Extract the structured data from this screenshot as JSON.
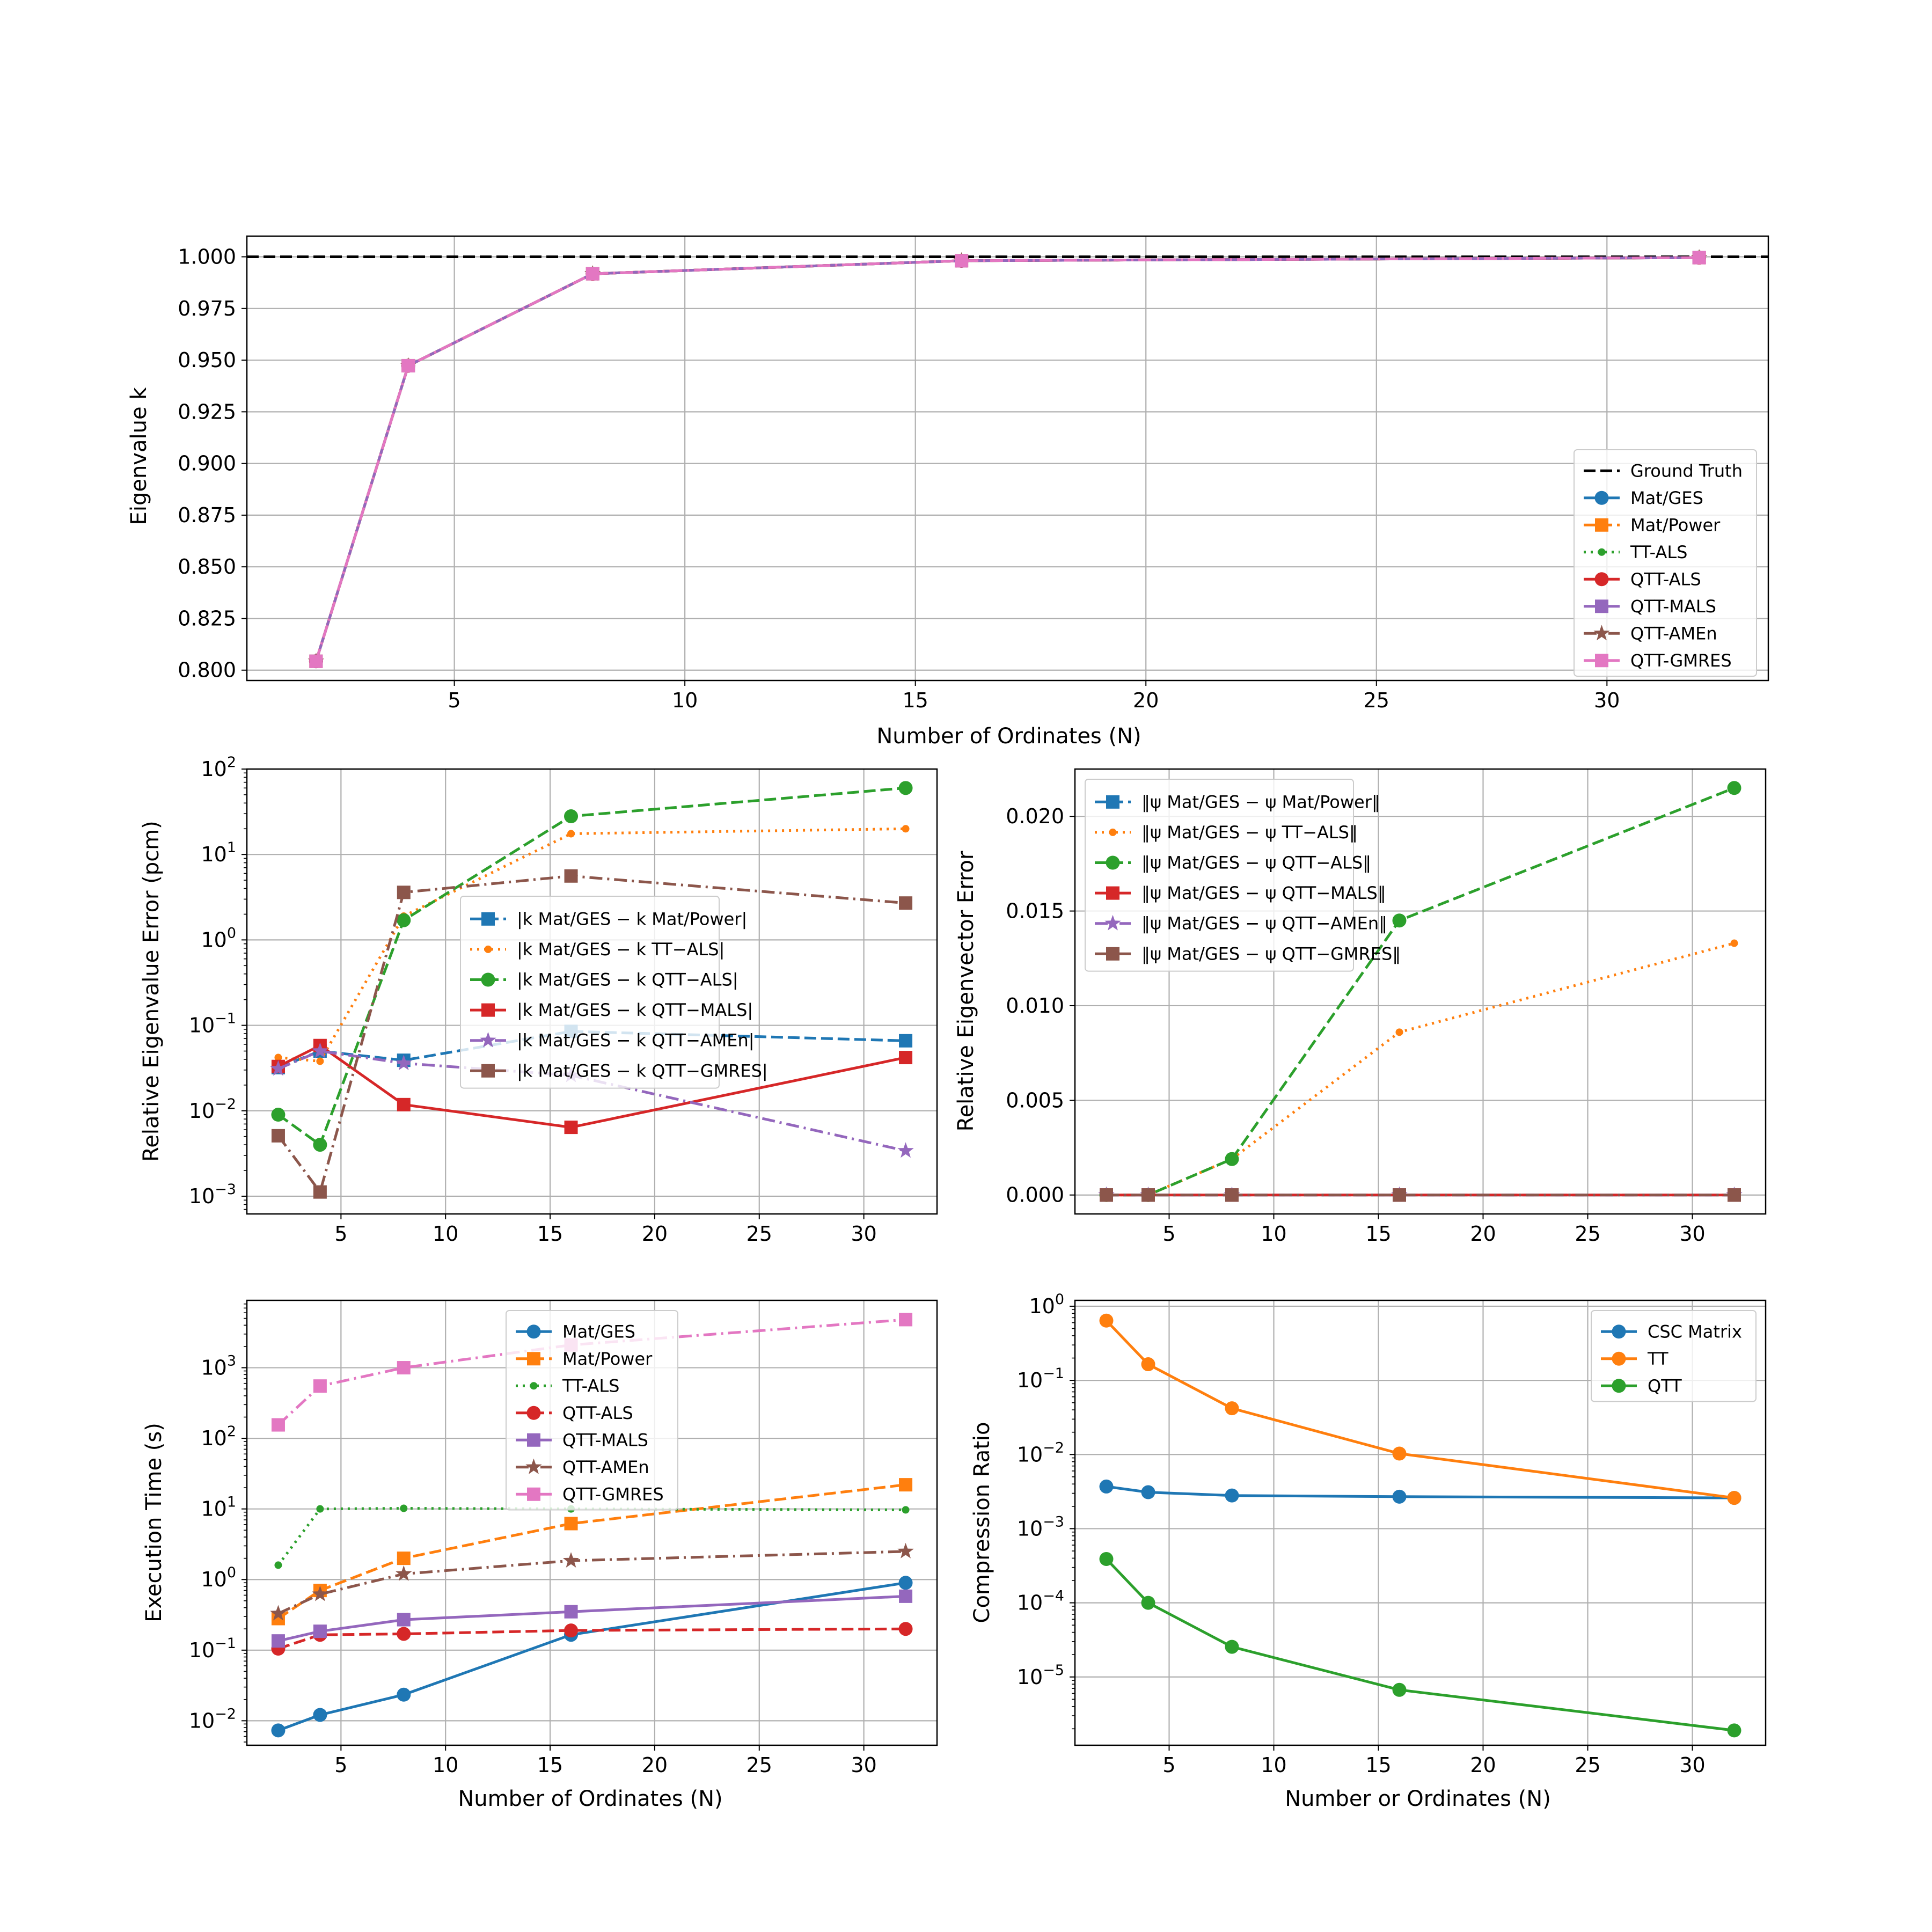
{
  "chart_data": [
    {
      "id": "p1",
      "type": "line",
      "xlabel": "Number of Ordinates (N)",
      "ylabel": "Eigenvalue k",
      "xlim": [
        0.5,
        33.5
      ],
      "ylim": [
        0.795,
        1.01
      ],
      "yscale": "linear",
      "grid": true,
      "legend_position": "lower-right",
      "xticks": [
        5,
        10,
        15,
        20,
        25,
        30
      ],
      "yticks": [
        0.8,
        0.825,
        0.85,
        0.875,
        0.9,
        0.925,
        0.95,
        0.975,
        1.0
      ],
      "ytick_labels": [
        "0.800",
        "0.825",
        "0.850",
        "0.875",
        "0.900",
        "0.925",
        "0.950",
        "0.975",
        "1.000"
      ],
      "x": [
        2,
        4,
        8,
        16,
        32
      ],
      "series": [
        {
          "name": "Ground Truth",
          "color": "#000000",
          "dash": "dashed",
          "marker": "none",
          "hline": 1.0
        },
        {
          "name": "Mat/GES",
          "color": "#1f77b4",
          "dash": "solid",
          "marker": "circle",
          "values": [
            0.8043,
            0.9473,
            0.9918,
            0.9981,
            0.9996
          ]
        },
        {
          "name": "Mat/Power",
          "color": "#ff7f0e",
          "dash": "dashed",
          "marker": "square",
          "values": [
            0.8043,
            0.9473,
            0.9918,
            0.9981,
            0.9996
          ]
        },
        {
          "name": "TT-ALS",
          "color": "#2ca02c",
          "dash": "dotted",
          "marker": "point",
          "values": [
            0.8043,
            0.9473,
            0.9918,
            0.9981,
            0.9996
          ]
        },
        {
          "name": "QTT-ALS",
          "color": "#d62728",
          "dash": "solid",
          "marker": "circle",
          "values": [
            0.8043,
            0.9473,
            0.9918,
            0.9981,
            0.9996
          ]
        },
        {
          "name": "QTT-MALS",
          "color": "#9467bd",
          "dash": "solid",
          "marker": "square",
          "values": [
            0.8043,
            0.9473,
            0.9918,
            0.9981,
            0.9996
          ]
        },
        {
          "name": "QTT-AMEn",
          "color": "#8c564b",
          "dash": "dashdot",
          "marker": "star",
          "values": [
            0.8043,
            0.9473,
            0.9918,
            0.9981,
            0.9996
          ]
        },
        {
          "name": "QTT-GMRES",
          "color": "#e377c2",
          "dash": "dashdot",
          "marker": "square",
          "values": [
            0.8043,
            0.9473,
            0.9918,
            0.9981,
            0.9996
          ]
        }
      ]
    },
    {
      "id": "p2",
      "type": "line",
      "xlabel": "",
      "ylabel": "Relative Eigenvalue Error (pcm)",
      "xlim": [
        0.5,
        33.5
      ],
      "ylim": [
        0.00062,
        100
      ],
      "yscale": "log",
      "grid": true,
      "legend_position": "center",
      "xticks": [
        5,
        10,
        15,
        20,
        25,
        30
      ],
      "yticks": [
        0.001,
        0.01,
        0.1,
        1,
        10,
        100
      ],
      "ytick_exps": [
        "-3",
        "-2",
        "-1",
        "0",
        "1",
        "2"
      ],
      "x": [
        2,
        4,
        8,
        16,
        32
      ],
      "series": [
        {
          "name": "|k Mat/GES − k Mat/Power|",
          "color": "#1f77b4",
          "dash": "dashed",
          "marker": "square",
          "values": [
            0.032,
            0.05,
            0.039,
            0.085,
            0.066
          ]
        },
        {
          "name": "|k Mat/GES − k TT−ALS|",
          "color": "#ff7f0e",
          "dash": "dotted",
          "marker": "point",
          "values": [
            0.042,
            0.038,
            1.9,
            17.5,
            20
          ]
        },
        {
          "name": "|k Mat/GES − k QTT−ALS|",
          "color": "#2ca02c",
          "dash": "dashed",
          "marker": "circle",
          "values": [
            0.009,
            0.004,
            1.7,
            28,
            60
          ]
        },
        {
          "name": "|k Mat/GES − k QTT−MALS|",
          "color": "#d62728",
          "dash": "solid",
          "marker": "square",
          "values": [
            0.033,
            0.058,
            0.0118,
            0.0064,
            0.042
          ]
        },
        {
          "name": "|k Mat/GES − k QTT−AMEn|",
          "color": "#9467bd",
          "dash": "dashdot",
          "marker": "star",
          "values": [
            0.031,
            0.05,
            0.036,
            0.026,
            0.0034
          ]
        },
        {
          "name": "|k Mat/GES − k QTT−GMRES|",
          "color": "#8c564b",
          "dash": "dashdot",
          "marker": "square",
          "values": [
            0.0051,
            0.00112,
            3.6,
            5.6,
            2.7
          ]
        }
      ]
    },
    {
      "id": "p3",
      "type": "line",
      "xlabel": "",
      "ylabel": "Relative Eigenvector Error",
      "xlim": [
        0.5,
        33.5
      ],
      "ylim": [
        -0.001,
        0.0225
      ],
      "yscale": "linear",
      "grid": true,
      "legend_position": "upper-left",
      "xticks": [
        5,
        10,
        15,
        20,
        25,
        30
      ],
      "yticks": [
        0,
        0.005,
        0.01,
        0.015,
        0.02
      ],
      "ytick_labels": [
        "0.000",
        "0.005",
        "0.010",
        "0.015",
        "0.020"
      ],
      "x": [
        2,
        4,
        8,
        16,
        32
      ],
      "series": [
        {
          "name": "‖ψ Mat/GES − ψ Mat/Power‖",
          "color": "#1f77b4",
          "dash": "dashed",
          "marker": "square",
          "values": [
            0,
            0,
            0,
            0,
            0
          ]
        },
        {
          "name": "‖ψ Mat/GES − ψ TT−ALS‖",
          "color": "#ff7f0e",
          "dash": "dotted",
          "marker": "point",
          "values": [
            0,
            0,
            0.0019,
            0.0086,
            0.0133
          ]
        },
        {
          "name": "‖ψ Mat/GES − ψ QTT−ALS‖",
          "color": "#2ca02c",
          "dash": "dashed",
          "marker": "circle",
          "values": [
            0,
            0,
            0.0019,
            0.0145,
            0.0215
          ]
        },
        {
          "name": "‖ψ Mat/GES − ψ QTT−MALS‖",
          "color": "#d62728",
          "dash": "solid",
          "marker": "square",
          "values": [
            0,
            0,
            0,
            0,
            0
          ]
        },
        {
          "name": "‖ψ Mat/GES − ψ QTT−AMEn‖",
          "color": "#9467bd",
          "dash": "dashdot",
          "marker": "star",
          "values": [
            0,
            0,
            0,
            0,
            0
          ]
        },
        {
          "name": "‖ψ Mat/GES − ψ QTT−GMRES‖",
          "color": "#8c564b",
          "dash": "dashdot",
          "marker": "square",
          "values": [
            0,
            0,
            0,
            0,
            0
          ]
        }
      ]
    },
    {
      "id": "p4",
      "type": "line",
      "xlabel": "Number of Ordinates (N)",
      "ylabel": "Execution Time (s)",
      "xlim": [
        0.5,
        33.5
      ],
      "ylim": [
        0.0045,
        9000
      ],
      "yscale": "log",
      "grid": true,
      "legend_position": "upper-center",
      "xticks": [
        5,
        10,
        15,
        20,
        25,
        30
      ],
      "yticks": [
        0.01,
        0.1,
        1,
        10,
        100,
        1000
      ],
      "ytick_exps": [
        "-2",
        "-1",
        "0",
        "1",
        "2",
        "3"
      ],
      "x": [
        2,
        4,
        8,
        16,
        32
      ],
      "series": [
        {
          "name": "Mat/GES",
          "color": "#1f77b4",
          "dash": "solid",
          "marker": "circle",
          "values": [
            0.0073,
            0.0121,
            0.0234,
            0.165,
            0.9
          ]
        },
        {
          "name": "Mat/Power",
          "color": "#ff7f0e",
          "dash": "dashed",
          "marker": "square",
          "values": [
            0.28,
            0.7,
            2.0,
            6.2,
            22
          ]
        },
        {
          "name": "TT-ALS",
          "color": "#2ca02c",
          "dash": "dotted",
          "marker": "point",
          "values": [
            1.6,
            10,
            10.2,
            10,
            9.7
          ]
        },
        {
          "name": "QTT-ALS",
          "color": "#d62728",
          "dash": "dashed",
          "marker": "circle",
          "values": [
            0.105,
            0.165,
            0.17,
            0.19,
            0.2
          ]
        },
        {
          "name": "QTT-MALS",
          "color": "#9467bd",
          "dash": "solid",
          "marker": "square",
          "values": [
            0.135,
            0.185,
            0.27,
            0.35,
            0.58
          ]
        },
        {
          "name": "QTT-AMEn",
          "color": "#8c564b",
          "dash": "dashdot",
          "marker": "star",
          "values": [
            0.33,
            0.62,
            1.2,
            1.85,
            2.5
          ]
        },
        {
          "name": "QTT-GMRES",
          "color": "#e377c2",
          "dash": "dashdot",
          "marker": "square",
          "values": [
            155,
            550,
            1000,
            2100,
            4800
          ]
        }
      ]
    },
    {
      "id": "p5",
      "type": "line",
      "xlabel": "Number or Ordinates (N)",
      "ylabel": "Compression Ratio",
      "xlim": [
        0.5,
        33.5
      ],
      "ylim": [
        1.2e-06,
        1.2
      ],
      "yscale": "log",
      "grid": true,
      "legend_position": "upper-right",
      "xticks": [
        5,
        10,
        15,
        20,
        25,
        30
      ],
      "yticks": [
        1e-05,
        0.0001,
        0.001,
        0.01,
        0.1,
        1
      ],
      "ytick_exps": [
        "-5",
        "-4",
        "-3",
        "-2",
        "-1",
        "0"
      ],
      "x": [
        2,
        4,
        8,
        16,
        32
      ],
      "series": [
        {
          "name": "CSC Matrix",
          "color": "#1f77b4",
          "dash": "solid",
          "marker": "circle",
          "values": [
            0.0037,
            0.0031,
            0.0028,
            0.0027,
            0.0026
          ]
        },
        {
          "name": "TT",
          "color": "#ff7f0e",
          "dash": "solid",
          "marker": "circle",
          "values": [
            0.64,
            0.165,
            0.042,
            0.0103,
            0.0026
          ]
        },
        {
          "name": "QTT",
          "color": "#2ca02c",
          "dash": "solid",
          "marker": "circle",
          "values": [
            0.00039,
            0.0001,
            2.55e-05,
            6.7e-06,
            1.9e-06
          ]
        }
      ]
    }
  ]
}
